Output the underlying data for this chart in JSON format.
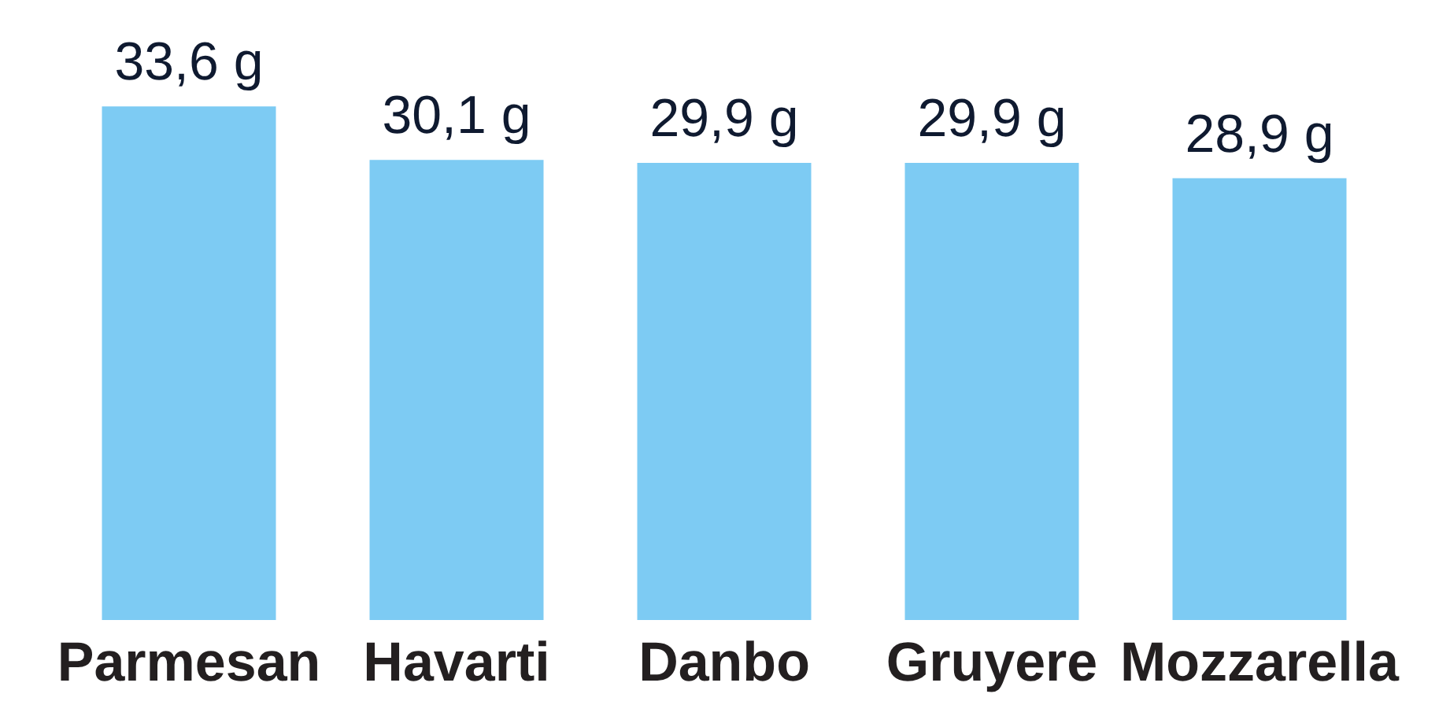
{
  "chart_data": {
    "type": "bar",
    "categories": [
      "Parmesan",
      "Havarti",
      "Danbo",
      "Gruyere",
      "Mozzarella"
    ],
    "values": [
      33.6,
      30.1,
      29.9,
      29.9,
      28.9
    ],
    "value_labels": [
      "33,6 g",
      "30,1 g",
      "29,9 g",
      "29,9 g",
      "28,9 g"
    ],
    "color": "#7dcbf3",
    "tick_labels": "x"
  }
}
